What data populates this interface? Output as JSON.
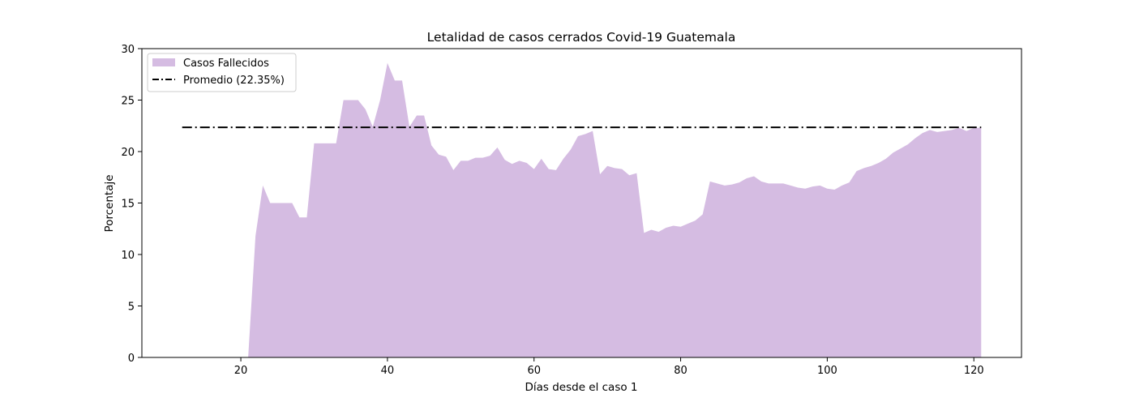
{
  "chart_data": {
    "type": "area",
    "title": "Letalidad de casos cerrados Covid-19 Guatemala",
    "xlabel": "Días desde el caso 1",
    "ylabel": "Porcentaje",
    "xlim": [
      6.5,
      126.5
    ],
    "ylim": [
      0,
      30
    ],
    "xticks": [
      20,
      40,
      60,
      80,
      100,
      120
    ],
    "yticks": [
      0,
      5,
      10,
      15,
      20,
      25,
      30
    ],
    "grid": false,
    "legend_position": "top-left",
    "series": [
      {
        "name": "Casos Fallecidos",
        "type": "area",
        "color": "#d5bce2",
        "x": [
          21,
          22,
          23,
          24,
          25,
          26,
          27,
          28,
          29,
          30,
          31,
          32,
          33,
          34,
          35,
          36,
          37,
          38,
          39,
          40,
          41,
          42,
          43,
          44,
          45,
          46,
          47,
          48,
          49,
          50,
          51,
          52,
          53,
          54,
          55,
          56,
          57,
          58,
          59,
          60,
          61,
          62,
          63,
          64,
          65,
          66,
          67,
          68,
          69,
          70,
          71,
          72,
          73,
          74,
          75,
          76,
          77,
          78,
          79,
          80,
          81,
          82,
          83,
          84,
          85,
          86,
          87,
          88,
          89,
          90,
          91,
          92,
          93,
          94,
          95,
          96,
          97,
          98,
          99,
          100,
          101,
          102,
          103,
          104,
          105,
          106,
          107,
          108,
          109,
          110,
          111,
          112,
          113,
          114,
          115,
          116,
          117,
          118,
          119,
          120,
          121
        ],
        "y": [
          0,
          11.8,
          16.7,
          15.0,
          15.0,
          15.0,
          15.0,
          13.6,
          13.6,
          20.8,
          20.8,
          20.8,
          20.8,
          25.0,
          25.0,
          25.0,
          24.1,
          22.4,
          25.0,
          28.6,
          26.9,
          26.9,
          22.4,
          23.5,
          23.5,
          20.6,
          19.7,
          19.5,
          18.2,
          19.1,
          19.1,
          19.4,
          19.4,
          19.6,
          20.4,
          19.2,
          18.8,
          19.1,
          18.9,
          18.3,
          19.3,
          18.3,
          18.2,
          19.3,
          20.2,
          21.5,
          21.7,
          22.0,
          17.8,
          18.6,
          18.4,
          18.3,
          17.7,
          17.9,
          12.1,
          12.4,
          12.2,
          12.6,
          12.8,
          12.7,
          13.0,
          13.3,
          13.9,
          17.1,
          16.9,
          16.7,
          16.8,
          17.0,
          17.4,
          17.6,
          17.1,
          16.9,
          16.9,
          16.9,
          16.7,
          16.5,
          16.4,
          16.6,
          16.7,
          16.4,
          16.3,
          16.7,
          17.0,
          18.1,
          18.4,
          18.6,
          18.9,
          19.3,
          19.9,
          20.3,
          20.7,
          21.3,
          21.8,
          22.1,
          21.9,
          22.0,
          22.1,
          22.3,
          22.0,
          22.3,
          22.3
        ]
      },
      {
        "name": "Promedio (22.35%)",
        "type": "line",
        "style": "dash-dot",
        "color": "#000000",
        "x": [
          12,
          121
        ],
        "y": [
          22.35,
          22.35
        ]
      }
    ]
  }
}
